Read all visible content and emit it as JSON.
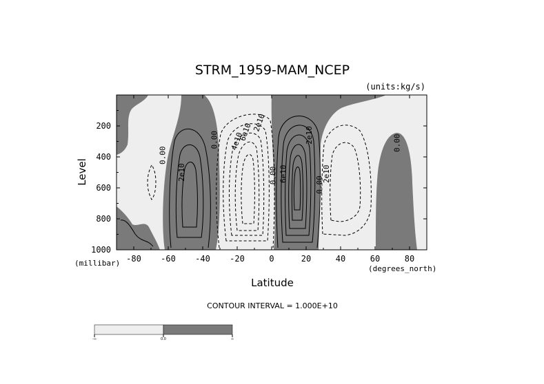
{
  "chart_data": {
    "type": "contour",
    "title": "STRM_1959-MAM_NCEP",
    "units": "(units:kg/s)",
    "xlabel": "Latitude",
    "ylabel": "Level",
    "x_unit": "(degrees_north)",
    "y_unit": "(millibar)",
    "xlim": [
      -90,
      90
    ],
    "ylim": [
      1000,
      0
    ],
    "x_ticks": [
      -80,
      -60,
      -40,
      -20,
      0,
      20,
      40,
      60,
      80
    ],
    "y_ticks": [
      200,
      400,
      600,
      800,
      1000
    ],
    "contour_interval_text": "CONTOUR INTERVAL = 1.000E+10",
    "contour_labels": [
      {
        "text": "0.00",
        "lat": -63,
        "lev": 390,
        "rot": -90
      },
      {
        "text": "2e10",
        "lat": -52,
        "lev": 500,
        "rot": -90
      },
      {
        "text": "0.00",
        "lat": -33,
        "lev": 290,
        "rot": -90
      },
      {
        "text": "4e10",
        "lat": -20,
        "lev": 300,
        "rot": -70
      },
      {
        "text": "6e10",
        "lat": -15,
        "lev": 240,
        "rot": -70
      },
      {
        "text": "2e10",
        "lat": -7,
        "lev": 180,
        "rot": -70
      },
      {
        "text": "0.00",
        "lat": 1,
        "lev": 520,
        "rot": -90
      },
      {
        "text": "6e10",
        "lat": 7,
        "lev": 510,
        "rot": -90
      },
      {
        "text": "2e10",
        "lat": 22,
        "lev": 260,
        "rot": -90
      },
      {
        "text": "2e10",
        "lat": 32,
        "lev": 510,
        "rot": -90
      },
      {
        "text": "0.00",
        "lat": 28,
        "lev": 580,
        "rot": -90
      },
      {
        "text": "0.00",
        "lat": 73,
        "lev": 310,
        "rot": -90
      }
    ],
    "fill_colors": {
      "negative": "#eeeeee",
      "positive": "#7a7a7a"
    },
    "colorbar": {
      "labels": [
        "-∞",
        "0.0",
        "∞"
      ],
      "colors": [
        "#eeeeee",
        "#7a7a7a"
      ]
    }
  }
}
